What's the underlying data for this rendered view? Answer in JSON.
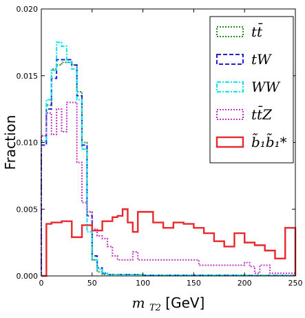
{
  "chart_data": {
    "type": "histogram",
    "xlabel": "m_T2 [GeV]",
    "xlabel_parts": {
      "var": "m",
      "sub": "T2",
      "unit": " [GeV]"
    },
    "ylabel": "Fraction",
    "xlim": [
      0,
      250
    ],
    "ylim": [
      0,
      0.02
    ],
    "x_ticks": [
      0,
      50,
      100,
      150,
      200,
      250
    ],
    "y_ticks": [
      0.0,
      0.005,
      0.01,
      0.015,
      0.02
    ],
    "x_tick_labels": [
      "0",
      "50",
      "100",
      "150",
      "200",
      "250"
    ],
    "y_tick_labels": [
      "0.000",
      "0.005",
      "0.010",
      "0.015",
      "0.020"
    ],
    "bin_width": 5,
    "grid": false,
    "legend_position": "upper-right",
    "series": [
      {
        "name": "tt̄",
        "color": "#228b22",
        "dash": "2,2",
        "values": [
          0.0105,
          0.0128,
          0.0155,
          0.0158,
          0.016,
          0.016,
          0.0158,
          0.0138,
          0.01,
          0.0048,
          0.0012,
          0.0003,
          0.0001,
          0.0001,
          0.0001,
          0.0001,
          0.0001,
          0.0001,
          0.0001,
          0.0001,
          5e-05,
          5e-05,
          5e-05,
          5e-05,
          5e-05,
          5e-05,
          5e-05,
          5e-05,
          5e-05,
          5e-05,
          5e-05,
          5e-05,
          5e-05,
          5e-05,
          5e-05,
          5e-05,
          5e-05,
          5e-05,
          5e-05,
          5e-05,
          3e-05,
          3e-05,
          3e-05,
          3e-05,
          3e-05,
          3e-05,
          3e-05,
          3e-05,
          3e-05,
          3e-05
        ]
      },
      {
        "name": "tW",
        "color": "#1f1fd6",
        "dash": "6,3",
        "values": [
          0.0098,
          0.0125,
          0.0148,
          0.0162,
          0.0162,
          0.0162,
          0.0158,
          0.0135,
          0.0098,
          0.0045,
          0.0015,
          0.0006,
          0.0002,
          0.0001,
          0.0001,
          0.0001,
          0.0001,
          0.0001,
          0.0001,
          0.0001,
          5e-05,
          5e-05,
          5e-05,
          5e-05,
          5e-05,
          5e-05,
          5e-05,
          5e-05,
          5e-05,
          5e-05,
          5e-05,
          5e-05,
          5e-05,
          5e-05,
          5e-05,
          5e-05,
          5e-05,
          5e-05,
          5e-05,
          5e-05,
          3e-05,
          3e-05,
          3e-05,
          3e-05,
          3e-05,
          3e-05,
          3e-05,
          3e-05,
          3e-05,
          3e-05
        ]
      },
      {
        "name": "WW",
        "color": "#00e5ee",
        "dash": "6,2,2,2",
        "values": [
          0.0101,
          0.0132,
          0.0154,
          0.0175,
          0.0172,
          0.016,
          0.0155,
          0.0132,
          0.0095,
          0.0033,
          0.0012,
          0.0005,
          0.0002,
          0.0001,
          0.0001,
          0.0001,
          0.0001,
          0.0001,
          0.0001,
          0.0001,
          5e-05,
          5e-05,
          5e-05,
          5e-05,
          5e-05,
          5e-05,
          5e-05,
          5e-05,
          5e-05,
          5e-05,
          5e-05,
          5e-05,
          5e-05,
          5e-05,
          5e-05,
          5e-05,
          5e-05,
          5e-05,
          5e-05,
          5e-05,
          3e-05,
          3e-05,
          3e-05,
          3e-05,
          3e-05,
          3e-05,
          3e-05,
          3e-05,
          3e-05,
          3e-05
        ]
      },
      {
        "name": "tt̄Z",
        "color": "#c030c0",
        "dash": "2,2",
        "values": [
          0.0105,
          0.0122,
          0.0106,
          0.0125,
          0.0108,
          0.013,
          0.013,
          0.0085,
          0.0055,
          0.0048,
          0.0035,
          0.003,
          0.0028,
          0.0022,
          0.0015,
          0.0012,
          0.0012,
          0.0012,
          0.0018,
          0.0012,
          0.0012,
          0.0012,
          0.0012,
          0.0012,
          0.0012,
          0.0012,
          0.0012,
          0.0012,
          0.0012,
          0.0012,
          0.0012,
          0.0008,
          0.0008,
          0.0008,
          0.0008,
          0.0008,
          0.0008,
          0.0008,
          0.0008,
          0.0008,
          0.001,
          0.0007,
          0.0002,
          0.0008,
          0.0008,
          0.0002,
          0.0002,
          0.0002,
          0.0002,
          0.0002
        ]
      },
      {
        "name": "b̃₁b̃₁*",
        "color": "#e8282b",
        "dash": "",
        "values": [
          0.0,
          0.0039,
          0.004,
          0.004,
          0.0041,
          0.0041,
          0.0029,
          0.0029,
          0.0038,
          0.0038,
          0.0034,
          0.0034,
          0.0041,
          0.0041,
          0.0044,
          0.0045,
          0.005,
          0.004,
          0.0033,
          0.0048,
          0.0048,
          0.0048,
          0.004,
          0.004,
          0.0036,
          0.0036,
          0.004,
          0.004,
          0.0039,
          0.0039,
          0.0036,
          0.0036,
          0.0032,
          0.0032,
          0.0026,
          0.0026,
          0.0022,
          0.0022,
          0.0032,
          0.0032,
          0.0025,
          0.0025,
          0.0023,
          0.0023,
          0.0019,
          0.0019,
          0.0013,
          0.0013,
          0.0036,
          0.0036
        ]
      }
    ]
  }
}
